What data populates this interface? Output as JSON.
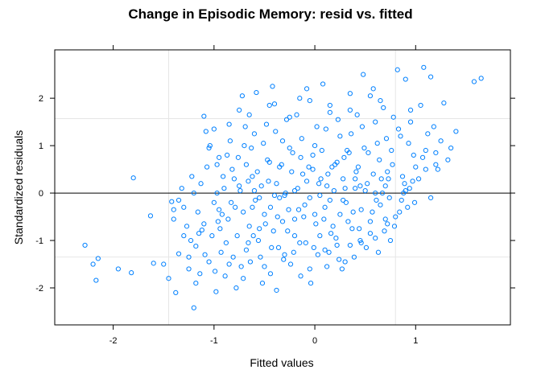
{
  "chart_data": {
    "type": "scatter",
    "title": "Change in Episodic Memory: resid vs. fitted",
    "xlabel": "Fitted values",
    "ylabel": "Standardized residuals",
    "xlim": [
      -2.58,
      1.94
    ],
    "ylim": [
      -2.78,
      3.02
    ],
    "x_ticks": [
      -2,
      -1,
      0,
      1
    ],
    "x_tick_labels": [
      "-2",
      "-1",
      "0",
      "1"
    ],
    "y_ticks": [
      -2,
      -1,
      0,
      1,
      2
    ],
    "y_tick_labels": [
      "-2",
      "-1",
      "0",
      "1",
      "2"
    ],
    "reference_lines": {
      "horizontal_solid": [
        0
      ],
      "horizontal_gray": [
        1.57,
        -1.35
      ],
      "vertical_gray": [
        -1.45,
        0.8
      ]
    },
    "grid": true,
    "legend": "none",
    "point_color": "#0080ff",
    "series": [
      {
        "points": [
          [
            -2.28,
            -1.1
          ],
          [
            -2.2,
            -1.5
          ],
          [
            -2.15,
            -1.38
          ],
          [
            -2.17,
            -1.84
          ],
          [
            -1.95,
            -1.6
          ],
          [
            -1.82,
            -1.68
          ],
          [
            -1.8,
            0.32
          ],
          [
            -1.6,
            -1.48
          ],
          [
            -1.63,
            -0.48
          ],
          [
            -1.42,
            -0.18
          ],
          [
            -1.4,
            -0.55
          ],
          [
            -1.38,
            -2.1
          ],
          [
            -1.35,
            -1.28
          ],
          [
            -1.3,
            -0.3
          ],
          [
            -1.25,
            -1.6
          ],
          [
            -1.22,
            0.35
          ],
          [
            -1.18,
            -1.12
          ],
          [
            -1.12,
            -0.78
          ],
          [
            -1.1,
            1.62
          ],
          [
            -1.08,
            1.3
          ],
          [
            -1.05,
            0.95
          ],
          [
            -1.04,
            1.0
          ],
          [
            -1.0,
            1.35
          ],
          [
            -0.98,
            -2.08
          ],
          [
            -0.96,
            -0.6
          ],
          [
            -1.15,
            -0.85
          ],
          [
            -1.13,
            0.2
          ],
          [
            -1.18,
            -1.9
          ],
          [
            -1.0,
            -0.2
          ],
          [
            -0.92,
            -0.45
          ],
          [
            -0.88,
            -1.05
          ],
          [
            -0.85,
            -1.5
          ],
          [
            -0.82,
            0.5
          ],
          [
            -0.78,
            -2.0
          ],
          [
            -0.75,
            1.75
          ],
          [
            -0.72,
            2.05
          ],
          [
            -0.7,
            1.0
          ],
          [
            -0.68,
            -1.2
          ],
          [
            -0.66,
            0.25
          ],
          [
            -0.62,
            -0.3
          ],
          [
            -0.6,
            1.25
          ],
          [
            -0.58,
            2.12
          ],
          [
            -0.55,
            -0.75
          ],
          [
            -0.5,
            -1.55
          ],
          [
            -0.48,
            1.45
          ],
          [
            -0.45,
            0.65
          ],
          [
            -0.42,
            2.25
          ],
          [
            -0.4,
            1.88
          ],
          [
            -0.38,
            -2.05
          ],
          [
            -0.35,
            -0.1
          ],
          [
            -0.32,
            1.1
          ],
          [
            -0.3,
            -1.3
          ],
          [
            -0.25,
            0.95
          ],
          [
            -0.2,
            -0.55
          ],
          [
            -0.18,
            1.65
          ],
          [
            -0.15,
            -1.05
          ],
          [
            -0.12,
            0.4
          ],
          [
            -0.1,
            -0.25
          ],
          [
            -0.08,
            2.2
          ],
          [
            -0.05,
            -1.6
          ],
          [
            -0.02,
            0.8
          ],
          [
            0.0,
            -0.45
          ],
          [
            0.02,
            1.4
          ],
          [
            0.05,
            -0.9
          ],
          [
            0.08,
            2.3
          ],
          [
            0.1,
            -1.2
          ],
          [
            0.12,
            0.15
          ],
          [
            0.15,
            1.85
          ],
          [
            0.18,
            -0.7
          ],
          [
            0.2,
            0.6
          ],
          [
            0.22,
            -1.1
          ],
          [
            0.25,
            1.2
          ],
          [
            0.28,
            -0.15
          ],
          [
            0.3,
            -1.45
          ],
          [
            0.32,
            0.9
          ],
          [
            0.35,
            2.1
          ],
          [
            0.38,
            -0.4
          ],
          [
            0.4,
            0.3
          ],
          [
            0.42,
            1.65
          ],
          [
            0.45,
            -1.0
          ],
          [
            0.48,
            2.5
          ],
          [
            0.5,
            0.05
          ],
          [
            0.55,
            -0.6
          ],
          [
            0.58,
            2.2
          ],
          [
            0.62,
            1.05
          ],
          [
            0.65,
            -0.25
          ],
          [
            0.68,
            1.8
          ],
          [
            0.72,
            0.45
          ],
          [
            0.75,
            -1.0
          ],
          [
            0.78,
            1.6
          ],
          [
            0.8,
            -0.5
          ],
          [
            0.82,
            2.6
          ],
          [
            0.85,
            1.2
          ],
          [
            0.88,
            0.0
          ],
          [
            0.9,
            2.4
          ],
          [
            0.92,
            -0.3
          ],
          [
            0.95,
            1.5
          ],
          [
            0.98,
            0.8
          ],
          [
            1.0,
            0.55
          ],
          [
            1.05,
            1.85
          ],
          [
            1.08,
            2.65
          ],
          [
            1.1,
            0.9
          ],
          [
            1.15,
            2.45
          ],
          [
            1.18,
            1.4
          ],
          [
            1.22,
            0.5
          ],
          [
            1.28,
            1.9
          ],
          [
            1.32,
            0.7
          ],
          [
            1.4,
            1.3
          ],
          [
            1.58,
            2.35
          ],
          [
            1.65,
            2.42
          ],
          [
            -1.2,
            -2.42
          ],
          [
            -1.25,
            -1.35
          ],
          [
            -1.35,
            -0.15
          ],
          [
            -1.4,
            -0.35
          ],
          [
            -0.95,
            -0.35
          ],
          [
            -0.9,
            0.1
          ],
          [
            -0.87,
            0.8
          ],
          [
            -0.83,
            -0.2
          ],
          [
            -0.8,
            0.3
          ],
          [
            -0.77,
            -0.9
          ],
          [
            -0.74,
            0.05
          ],
          [
            -0.71,
            -0.4
          ],
          [
            -0.68,
            0.6
          ],
          [
            -0.65,
            -0.7
          ],
          [
            -0.62,
            0.35
          ],
          [
            -0.59,
            -0.15
          ],
          [
            -0.56,
            -1.0
          ],
          [
            -0.53,
            0.15
          ],
          [
            -0.5,
            -0.45
          ],
          [
            -0.47,
            0.7
          ],
          [
            -0.44,
            -0.3
          ],
          [
            -0.41,
            -0.8
          ],
          [
            -0.38,
            0.2
          ],
          [
            -0.35,
            0.55
          ],
          [
            -0.32,
            -0.6
          ],
          [
            -0.29,
            0.0
          ],
          [
            -0.26,
            -0.35
          ],
          [
            -0.23,
            0.45
          ],
          [
            -0.2,
            -0.9
          ],
          [
            -0.17,
            0.1
          ],
          [
            -0.14,
            0.75
          ],
          [
            -0.11,
            -0.5
          ],
          [
            -0.08,
            0.25
          ],
          [
            -0.05,
            -0.1
          ],
          [
            -0.02,
            0.5
          ],
          [
            0.01,
            -0.65
          ],
          [
            0.04,
            0.2
          ],
          [
            0.07,
            0.9
          ],
          [
            0.1,
            -0.3
          ],
          [
            0.13,
            0.4
          ],
          [
            0.16,
            -0.85
          ],
          [
            0.19,
            0.05
          ],
          [
            0.22,
            0.65
          ],
          [
            0.25,
            -0.45
          ],
          [
            0.28,
            0.3
          ],
          [
            0.31,
            -0.2
          ],
          [
            0.34,
            0.85
          ],
          [
            0.37,
            -0.75
          ],
          [
            0.4,
            0.1
          ],
          [
            0.43,
            0.55
          ],
          [
            0.46,
            -0.35
          ],
          [
            0.49,
            0.95
          ],
          [
            0.52,
            0.2
          ],
          [
            0.55,
            -0.85
          ],
          [
            0.58,
            0.4
          ],
          [
            0.61,
            -0.15
          ],
          [
            0.64,
            0.7
          ],
          [
            0.67,
            0.0
          ],
          [
            0.7,
            -0.55
          ],
          [
            0.73,
            0.3
          ],
          [
            0.76,
            0.9
          ],
          [
            -1.1,
            -0.65
          ],
          [
            -1.05,
            -1.45
          ],
          [
            -1.02,
            -0.9
          ],
          [
            -1.07,
            0.55
          ],
          [
            -0.93,
            -1.25
          ],
          [
            -0.86,
            -0.55
          ],
          [
            -0.79,
            -0.3
          ],
          [
            -0.73,
            -1.55
          ],
          [
            -0.66,
            -1.05
          ],
          [
            -0.61,
            -0.9
          ],
          [
            -0.54,
            -1.35
          ],
          [
            -0.49,
            -0.65
          ],
          [
            -0.43,
            -1.15
          ],
          [
            -0.37,
            -0.5
          ],
          [
            -0.31,
            -1.4
          ],
          [
            -0.27,
            -0.8
          ],
          [
            -0.21,
            -1.25
          ],
          [
            -0.16,
            -0.35
          ],
          [
            -0.09,
            -1.05
          ],
          [
            -0.04,
            -1.9
          ],
          [
            0.03,
            -1.3
          ],
          [
            0.09,
            -0.55
          ],
          [
            0.14,
            -1.25
          ],
          [
            0.21,
            -0.95
          ],
          [
            0.27,
            -1.6
          ],
          [
            0.33,
            -0.6
          ],
          [
            0.39,
            -1.35
          ],
          [
            0.44,
            -0.75
          ],
          [
            0.51,
            -1.15
          ],
          [
            0.57,
            -0.4
          ],
          [
            0.63,
            -1.25
          ],
          [
            0.69,
            -0.8
          ],
          [
            0.74,
            -0.1
          ],
          [
            0.79,
            -0.7
          ],
          [
            0.84,
            -0.4
          ],
          [
            0.89,
            0.2
          ],
          [
            0.94,
            0.1
          ],
          [
            0.99,
            -0.2
          ],
          [
            1.03,
            0.3
          ],
          [
            -0.97,
            0.6
          ],
          [
            -0.91,
            0.35
          ],
          [
            -0.84,
            1.1
          ],
          [
            -0.76,
            0.75
          ],
          [
            -0.69,
            1.4
          ],
          [
            -0.63,
            0.95
          ],
          [
            -0.57,
            0.45
          ],
          [
            -0.51,
            1.05
          ],
          [
            -0.46,
            0.25
          ],
          [
            -0.39,
            1.3
          ],
          [
            -0.33,
            0.6
          ],
          [
            -0.28,
            1.55
          ],
          [
            -0.22,
            0.85
          ],
          [
            -0.13,
            1.15
          ],
          [
            -0.06,
            0.55
          ],
          [
            0.0,
            1.0
          ],
          [
            0.06,
            0.3
          ],
          [
            0.11,
            1.35
          ],
          [
            0.17,
            0.55
          ],
          [
            0.23,
            1.55
          ],
          [
            0.29,
            0.75
          ],
          [
            0.36,
            1.25
          ],
          [
            0.41,
            0.45
          ],
          [
            0.47,
            1.4
          ],
          [
            0.53,
            0.85
          ],
          [
            0.6,
            1.5
          ],
          [
            0.66,
            0.3
          ],
          [
            0.71,
            1.15
          ],
          [
            0.77,
            0.6
          ],
          [
            0.83,
            1.35
          ],
          [
            0.87,
            0.35
          ],
          [
            0.93,
            1.05
          ],
          [
            0.97,
            0.25
          ],
          [
            1.07,
            0.75
          ],
          [
            1.12,
            1.25
          ],
          [
            1.2,
            0.85
          ],
          [
            1.25,
            1.1
          ],
          [
            -1.27,
            -0.7
          ],
          [
            -1.23,
            -1.0
          ],
          [
            -1.16,
            -0.4
          ],
          [
            -1.14,
            -1.7
          ],
          [
            -1.09,
            -1.3
          ],
          [
            -0.99,
            -1.65
          ],
          [
            -0.94,
            -0.75
          ],
          [
            -0.89,
            -1.75
          ],
          [
            -0.81,
            -1.35
          ],
          [
            -0.71,
            -1.8
          ],
          [
            -0.64,
            -1.45
          ],
          [
            -0.52,
            -1.9
          ],
          [
            -0.44,
            -1.7
          ],
          [
            -0.36,
            -1.15
          ],
          [
            -0.24,
            -1.5
          ],
          [
            -0.14,
            -1.75
          ],
          [
            -0.01,
            -1.15
          ],
          [
            0.12,
            -1.55
          ],
          [
            0.24,
            -1.4
          ],
          [
            0.35,
            -1.1
          ],
          [
            0.46,
            -1.05
          ],
          [
            0.6,
            -0.95
          ],
          [
            0.72,
            -0.65
          ],
          [
            0.86,
            -0.15
          ],
          [
            -1.5,
            -1.5
          ],
          [
            -1.45,
            -1.8
          ],
          [
            -1.3,
            -0.9
          ],
          [
            -1.32,
            0.1
          ],
          [
            -1.2,
            0.0
          ],
          [
            -0.97,
            0.0
          ],
          [
            -0.6,
            0.05
          ],
          [
            -0.4,
            -0.05
          ],
          [
            -0.2,
            0.05
          ],
          [
            0.05,
            -0.05
          ],
          [
            0.3,
            0.1
          ],
          [
            0.6,
            0.0
          ],
          [
            0.9,
            0.05
          ],
          [
            1.15,
            -0.1
          ],
          [
            -0.3,
            -0.05
          ],
          [
            0.15,
            -0.15
          ],
          [
            0.45,
            0.15
          ],
          [
            -0.75,
            0.15
          ],
          [
            -0.55,
            -0.1
          ],
          [
            0.7,
            0.15
          ],
          [
            1.1,
            0.5
          ],
          [
            1.2,
            0.6
          ],
          [
            1.35,
            0.95
          ],
          [
            0.95,
            1.75
          ],
          [
            0.55,
            2.05
          ],
          [
            0.35,
            1.75
          ],
          [
            0.15,
            1.7
          ],
          [
            -0.05,
            1.95
          ],
          [
            -0.25,
            1.6
          ],
          [
            -0.45,
            1.85
          ],
          [
            -0.65,
            1.65
          ],
          [
            -0.85,
            1.45
          ],
          [
            -0.95,
            0.75
          ],
          [
            -0.15,
            2.0
          ],
          [
            0.65,
            1.95
          ]
        ]
      }
    ]
  }
}
